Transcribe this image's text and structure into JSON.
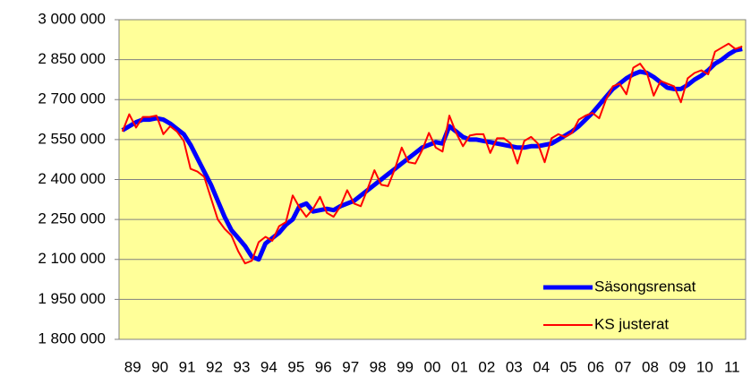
{
  "chart_data": {
    "type": "line",
    "categories": [
      null,
      "89",
      null,
      null,
      null,
      "90",
      null,
      null,
      null,
      "91",
      null,
      null,
      null,
      "92",
      null,
      null,
      null,
      "93",
      null,
      null,
      null,
      "94",
      null,
      null,
      null,
      "95",
      null,
      null,
      null,
      "96",
      null,
      null,
      null,
      "97",
      null,
      null,
      null,
      "98",
      null,
      null,
      null,
      "99",
      null,
      null,
      null,
      "00",
      null,
      null,
      null,
      "01",
      null,
      null,
      null,
      "02",
      null,
      null,
      null,
      "03",
      null,
      null,
      null,
      "04",
      null,
      null,
      null,
      "05",
      null,
      null,
      null,
      "06",
      null,
      null,
      null,
      "07",
      null,
      null,
      null,
      "08",
      null,
      null,
      null,
      "09",
      null,
      null,
      null,
      "10",
      null,
      null,
      null,
      "11",
      null,
      null
    ],
    "series": [
      {
        "name": "Säsongsrensat",
        "color": "#0000ff",
        "values": [
          2585000,
          2600000,
          2615000,
          2625000,
          2625000,
          2630000,
          2625000,
          2610000,
          2590000,
          2570000,
          2530000,
          2480000,
          2430000,
          2380000,
          2320000,
          2260000,
          2210000,
          2180000,
          2150000,
          2110000,
          2100000,
          2160000,
          2180000,
          2200000,
          2230000,
          2250000,
          2300000,
          2310000,
          2280000,
          2285000,
          2290000,
          2285000,
          2300000,
          2310000,
          2320000,
          2340000,
          2360000,
          2380000,
          2400000,
          2420000,
          2440000,
          2460000,
          2480000,
          2500000,
          2520000,
          2530000,
          2540000,
          2535000,
          2600000,
          2580000,
          2560000,
          2550000,
          2550000,
          2545000,
          2540000,
          2535000,
          2530000,
          2525000,
          2520000,
          2520000,
          2525000,
          2525000,
          2530000,
          2535000,
          2550000,
          2565000,
          2580000,
          2600000,
          2625000,
          2650000,
          2680000,
          2710000,
          2740000,
          2760000,
          2780000,
          2795000,
          2805000,
          2800000,
          2785000,
          2765000,
          2745000,
          2740000,
          2740000,
          2755000,
          2775000,
          2790000,
          2810000,
          2835000,
          2850000,
          2870000,
          2885000,
          2890000
        ]
      },
      {
        "name": "KS justerat",
        "color": "#ff0000",
        "values": [
          2580000,
          2645000,
          2595000,
          2635000,
          2635000,
          2640000,
          2570000,
          2600000,
          2580000,
          2545000,
          2440000,
          2430000,
          2410000,
          2330000,
          2250000,
          2215000,
          2190000,
          2130000,
          2085000,
          2095000,
          2165000,
          2185000,
          2170000,
          2225000,
          2240000,
          2340000,
          2295000,
          2260000,
          2290000,
          2335000,
          2275000,
          2260000,
          2300000,
          2360000,
          2310000,
          2300000,
          2365000,
          2435000,
          2380000,
          2375000,
          2440000,
          2520000,
          2465000,
          2460000,
          2510000,
          2575000,
          2520000,
          2505000,
          2640000,
          2575000,
          2525000,
          2565000,
          2570000,
          2570000,
          2500000,
          2555000,
          2555000,
          2535000,
          2460000,
          2545000,
          2560000,
          2535000,
          2465000,
          2555000,
          2570000,
          2560000,
          2575000,
          2625000,
          2640000,
          2650000,
          2630000,
          2700000,
          2750000,
          2760000,
          2720000,
          2820000,
          2835000,
          2800000,
          2715000,
          2770000,
          2760000,
          2750000,
          2690000,
          2780000,
          2800000,
          2810000,
          2795000,
          2880000,
          2895000,
          2910000,
          2890000,
          2900000
        ]
      }
    ],
    "ylim": [
      1800000,
      3000000
    ],
    "yticks": [
      {
        "value": 1800000,
        "label": "1 800 000"
      },
      {
        "value": 1950000,
        "label": "1 950 000"
      },
      {
        "value": 2100000,
        "label": "2 100 000"
      },
      {
        "value": 2250000,
        "label": "2 250 000"
      },
      {
        "value": 2400000,
        "label": "2 400 000"
      },
      {
        "value": 2550000,
        "label": "2 550 000"
      },
      {
        "value": 2700000,
        "label": "2 700 000"
      },
      {
        "value": 2850000,
        "label": "2 850 000"
      },
      {
        "value": 3000000,
        "label": "3 000 000"
      }
    ],
    "grid": true,
    "legend": "lower right",
    "background": "#ffff99"
  }
}
